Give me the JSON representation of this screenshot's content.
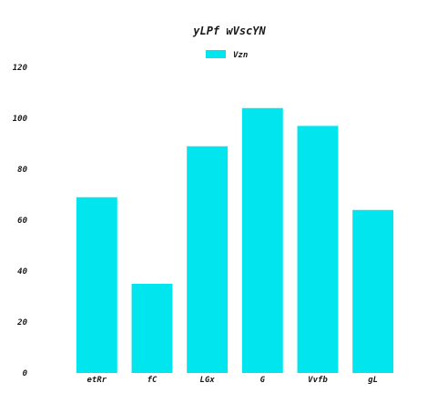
{
  "chart_data": {
    "type": "bar",
    "title": "yLPf wVscYN",
    "categories": [
      "etRr",
      "fC",
      "LGx",
      "G",
      "Vvfb",
      "gL"
    ],
    "series": [
      {
        "name": "Vzn",
        "values": [
          69,
          35,
          89,
          104,
          97,
          64
        ],
        "color": "#00e5ee"
      }
    ],
    "xlabel": "",
    "ylabel": "",
    "ylim": [
      0,
      120
    ],
    "yticks": [
      0,
      20,
      40,
      60,
      80,
      100,
      120
    ],
    "grid": false,
    "legend_position": "top-center"
  }
}
